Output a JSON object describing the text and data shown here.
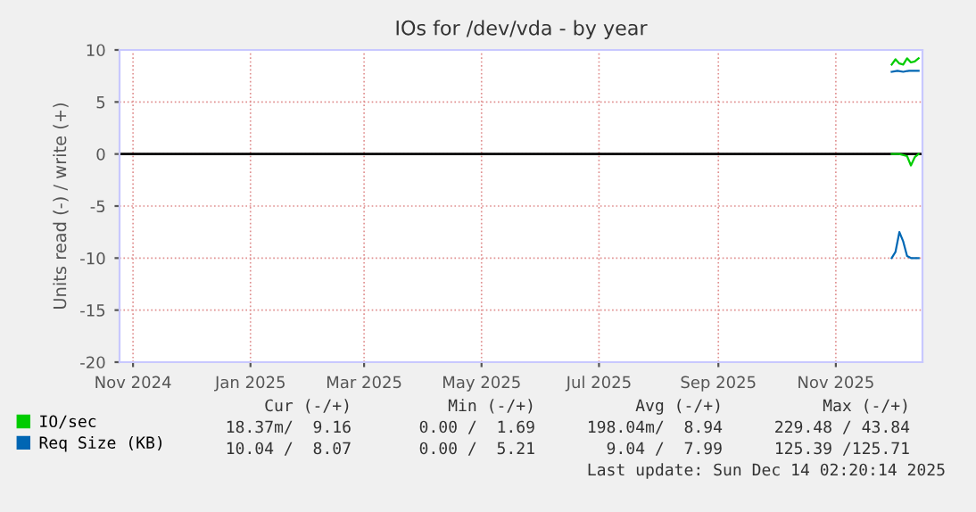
{
  "chart_data": {
    "type": "line",
    "title": "IOs for /dev/vda - by year",
    "ylabel": "Units read (-) / write (+)",
    "xlim": [
      "2024-10-25",
      "2025-12-16"
    ],
    "xticks": [
      {
        "value": "2024-11-01",
        "label": "Nov 2024"
      },
      {
        "value": "2025-01-01",
        "label": "Jan 2025"
      },
      {
        "value": "2025-03-01",
        "label": "Mar 2025"
      },
      {
        "value": "2025-05-01",
        "label": "May 2025"
      },
      {
        "value": "2025-07-01",
        "label": "Jul 2025"
      },
      {
        "value": "2025-09-01",
        "label": "Sep 2025"
      },
      {
        "value": "2025-11-01",
        "label": "Nov 2025"
      }
    ],
    "ylim": [
      -20,
      10
    ],
    "yticks": [
      -20,
      -15,
      -10,
      -5,
      0,
      5,
      10
    ],
    "grid": true,
    "legend": "bottom",
    "series": [
      {
        "name": "IO/sec",
        "color": "#00cc00",
        "x": [
          "2025-11-30",
          "2025-12-02",
          "2025-12-04",
          "2025-12-06",
          "2025-12-08",
          "2025-12-10",
          "2025-12-12",
          "2025-12-14"
        ],
        "values": [
          8.6,
          9.1,
          8.7,
          8.6,
          9.2,
          8.8,
          8.9,
          9.2
        ]
      },
      {
        "color": "#02cc02",
        "x": [
          "2025-11-30",
          "2025-12-04",
          "2025-12-08",
          "2025-12-10",
          "2025-12-12",
          "2025-12-14"
        ],
        "values": [
          0.0,
          0.0,
          -0.2,
          -1.1,
          -0.3,
          0.0
        ]
      },
      {
        "name": "Req Size (KB)",
        "color": "#0066b3",
        "x": [
          "2025-11-30",
          "2025-12-03",
          "2025-12-06",
          "2025-12-09",
          "2025-12-12",
          "2025-12-14"
        ],
        "values": [
          7.9,
          8.0,
          7.9,
          8.0,
          8.0,
          8.0
        ]
      },
      {
        "color": "#0068b5",
        "x": [
          "2025-11-30",
          "2025-12-02",
          "2025-12-04",
          "2025-12-06",
          "2025-12-08",
          "2025-12-10",
          "2025-12-12",
          "2025-12-14"
        ],
        "values": [
          -10.0,
          -9.4,
          -7.5,
          -8.4,
          -9.8,
          -10.0,
          -10.0,
          -10.0
        ]
      }
    ],
    "ref_lines": [
      {
        "axis": "y",
        "value": 0,
        "color": "#000000"
      }
    ],
    "annotations": [
      "Cur (-/+)",
      "Min (-/+)",
      "Avg (-/+)",
      "Max (-/+)",
      "18.37m/  9.16",
      "0.00 /  1.69",
      "198.04m/  8.94",
      "229.48 / 43.84",
      "10.04 /  8.07",
      "0.00 /  5.21",
      "9.04 /  7.99",
      "125.39 /125.71",
      "Last update: Sun Dec 14 02:20:14 2025"
    ]
  }
}
